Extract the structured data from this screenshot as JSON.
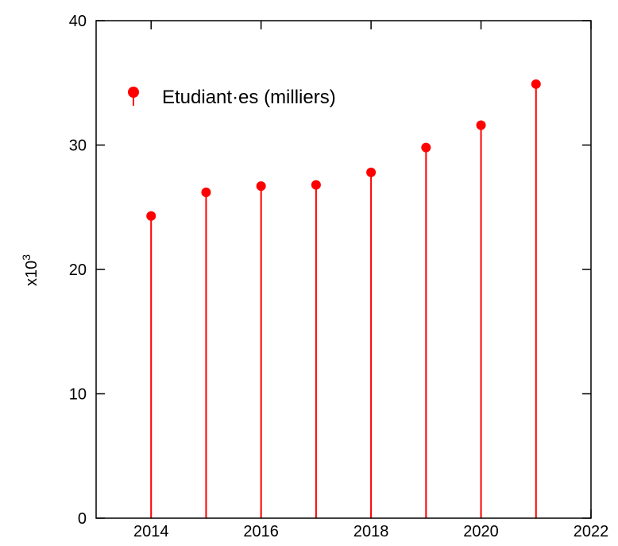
{
  "chart_data": {
    "type": "stem",
    "x": [
      2014,
      2015,
      2016,
      2017,
      2018,
      2019,
      2020,
      2021
    ],
    "y": [
      24.3,
      26.2,
      26.7,
      26.8,
      27.8,
      29.8,
      31.6,
      34.9
    ],
    "series": [
      {
        "name": "Etudiant·es (milliers)",
        "color": "#ff0000"
      }
    ],
    "xlim": [
      2013,
      2022
    ],
    "ylim": [
      0,
      40
    ],
    "xticks": [
      2014,
      2016,
      2018,
      2020,
      2022
    ],
    "yticks": [
      0,
      10,
      20,
      30,
      40
    ],
    "ylabel": "x10",
    "ylabel_exponent": "3",
    "legend_position": "top-left",
    "grid": false
  }
}
